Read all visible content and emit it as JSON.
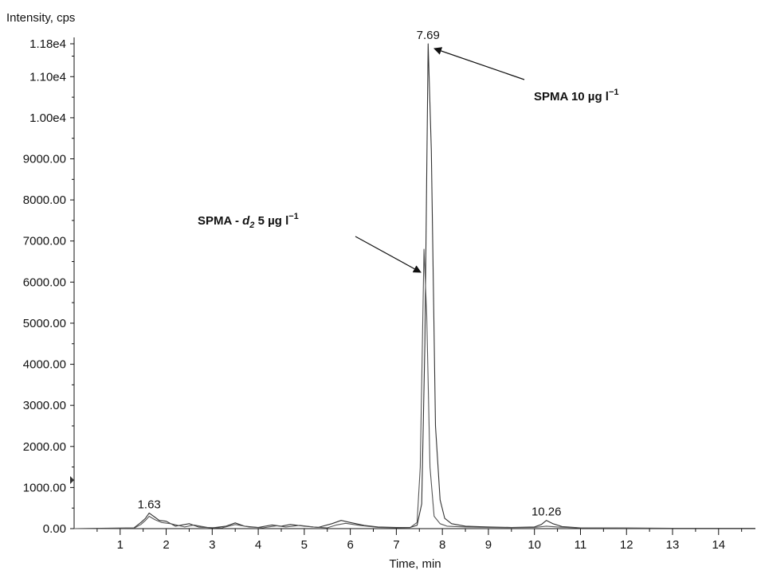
{
  "chart_data": {
    "type": "line",
    "xlabel": "Time, min",
    "ylabel": "Intensity, cps",
    "xlim": [
      0,
      14.8
    ],
    "ylim": [
      0,
      11800
    ],
    "x_ticks": [
      1,
      2,
      3,
      4,
      5,
      6,
      7,
      8,
      9,
      10,
      11,
      12,
      13,
      14
    ],
    "x_tick_labels": [
      "1",
      "2",
      "3",
      "4",
      "5",
      "6",
      "7",
      "8",
      "9",
      "10",
      "11",
      "12",
      "13",
      "14"
    ],
    "y_ticks": [
      0,
      1000,
      2000,
      3000,
      4000,
      5000,
      6000,
      7000,
      8000,
      9000,
      10000,
      11000,
      11800
    ],
    "y_tick_labels": [
      "0.00",
      "1000.00",
      "2000.00",
      "3000.00",
      "4000.00",
      "5000.00",
      "6000.00",
      "7000.00",
      "8000.00",
      "9000.00",
      "1.00e4",
      "1.10e4",
      "1.18e4"
    ],
    "grid": false,
    "series": [
      {
        "color": "#333333",
        "x": [
          0.0,
          1.3,
          1.45,
          1.55,
          1.63,
          1.75,
          1.85,
          2.0,
          2.2,
          2.5,
          2.7,
          3.0,
          3.3,
          3.5,
          3.7,
          4.0,
          4.3,
          4.5,
          4.7,
          5.0,
          5.3,
          5.6,
          5.8,
          6.0,
          6.3,
          6.6,
          7.0,
          7.3,
          7.45,
          7.55,
          7.62,
          7.69,
          7.76,
          7.85,
          7.95,
          8.05,
          8.2,
          8.5,
          9.0,
          9.5,
          10.0,
          10.15,
          10.26,
          10.4,
          10.6,
          11.0,
          12.0,
          13.0,
          14.0,
          14.8
        ],
        "y": [
          0,
          20,
          150,
          250,
          380,
          280,
          200,
          180,
          60,
          120,
          40,
          20,
          60,
          140,
          60,
          30,
          90,
          60,
          100,
          60,
          30,
          120,
          200,
          150,
          80,
          40,
          30,
          30,
          80,
          600,
          4500,
          11800,
          9200,
          2500,
          700,
          250,
          120,
          60,
          40,
          30,
          40,
          100,
          200,
          120,
          50,
          20,
          15,
          10,
          10,
          10
        ]
      },
      {
        "color": "#555555",
        "x": [
          0.0,
          1.3,
          1.45,
          1.55,
          1.63,
          1.75,
          1.9,
          2.1,
          2.4,
          2.6,
          2.9,
          3.2,
          3.5,
          3.8,
          4.1,
          4.4,
          4.6,
          4.9,
          5.2,
          5.5,
          5.7,
          5.9,
          6.2,
          6.6,
          7.0,
          7.3,
          7.45,
          7.52,
          7.6,
          7.66,
          7.73,
          7.82,
          7.95,
          8.1,
          8.5,
          9.0,
          9.5,
          10.0,
          10.26,
          10.5,
          11.0,
          12.0,
          13.0,
          14.0,
          14.8
        ],
        "y": [
          0,
          10,
          100,
          200,
          300,
          220,
          150,
          120,
          40,
          90,
          30,
          15,
          100,
          40,
          20,
          70,
          40,
          80,
          40,
          20,
          90,
          130,
          80,
          30,
          20,
          25,
          150,
          1500,
          6800,
          5200,
          1500,
          300,
          120,
          60,
          40,
          30,
          25,
          30,
          60,
          40,
          15,
          10,
          10,
          10,
          10
        ]
      }
    ],
    "peak_labels": [
      {
        "text": "7.69",
        "x": 7.69,
        "y": 11800
      },
      {
        "text": "1.63",
        "x": 1.63,
        "y": 380
      },
      {
        "text": "10.26",
        "x": 10.26,
        "y": 200
      }
    ],
    "annotations": [
      {
        "main": "SPMA 10 µg l",
        "sup": "−1",
        "target_x": 7.69,
        "target_y": 11800
      },
      {
        "main_pre": "SPMA - ",
        "italic": "d",
        "sub": "2",
        "main_post": "  5 µg l",
        "sup": "−1",
        "target_x": 7.58,
        "target_y": 6300
      }
    ]
  }
}
